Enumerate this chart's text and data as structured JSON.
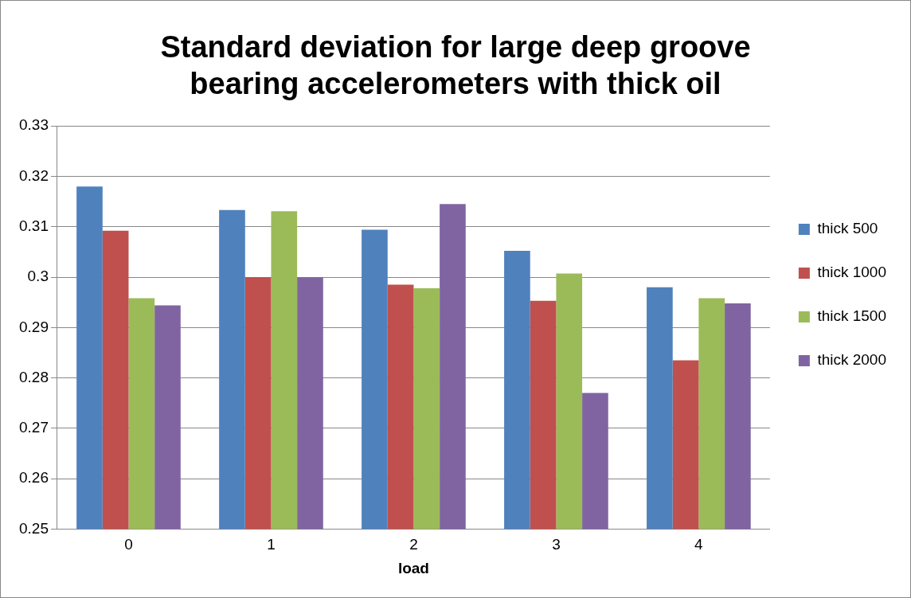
{
  "chart_data": {
    "type": "bar",
    "title": "Standard deviation for large deep groove bearing accelerometers with thick oil",
    "xlabel": "load",
    "categories": [
      "0",
      "1",
      "2",
      "3",
      "4"
    ],
    "series": [
      {
        "name": "thick 500",
        "color": "#4f81bd",
        "values": [
          0.318,
          0.3133,
          0.3094,
          0.3052,
          0.298
        ]
      },
      {
        "name": "thick 1000",
        "color": "#c0504d",
        "values": [
          0.3092,
          0.3,
          0.2985,
          0.2953,
          0.2835
        ]
      },
      {
        "name": "thick 1500",
        "color": "#9bbb59",
        "values": [
          0.2958,
          0.3131,
          0.2978,
          0.3007,
          0.2958
        ]
      },
      {
        "name": "thick 2000",
        "color": "#8064a2",
        "values": [
          0.2944,
          0.3,
          0.3145,
          0.277,
          0.2948
        ]
      }
    ],
    "ylim": [
      0.25,
      0.33
    ],
    "yticks": [
      0.25,
      0.26,
      0.27,
      0.28,
      0.29,
      0.3,
      0.31,
      0.32,
      0.33
    ],
    "grid": "y",
    "legend": "right"
  }
}
